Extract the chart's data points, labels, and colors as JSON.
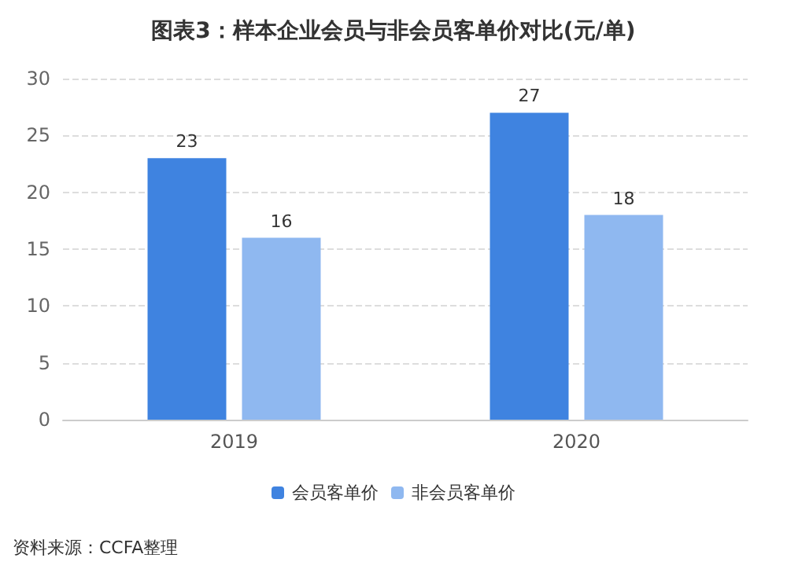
{
  "chart_data": {
    "type": "bar",
    "title": "图表3：样本企业会员与非会员客单价对比(元/单)",
    "categories": [
      "2019",
      "2020"
    ],
    "series": [
      {
        "name": "会员客单价",
        "color": "#3f83e0",
        "values": [
          23,
          27
        ]
      },
      {
        "name": "非会员客单价",
        "color": "#8fb8f0",
        "values": [
          16,
          18
        ]
      }
    ],
    "ylim": [
      0,
      30
    ],
    "yticks": [
      0,
      5,
      10,
      15,
      20,
      25,
      30
    ],
    "grid": "y",
    "legend": "bottom",
    "data_labels": true,
    "annotations": [
      "资料来源：CCFA整理"
    ]
  }
}
